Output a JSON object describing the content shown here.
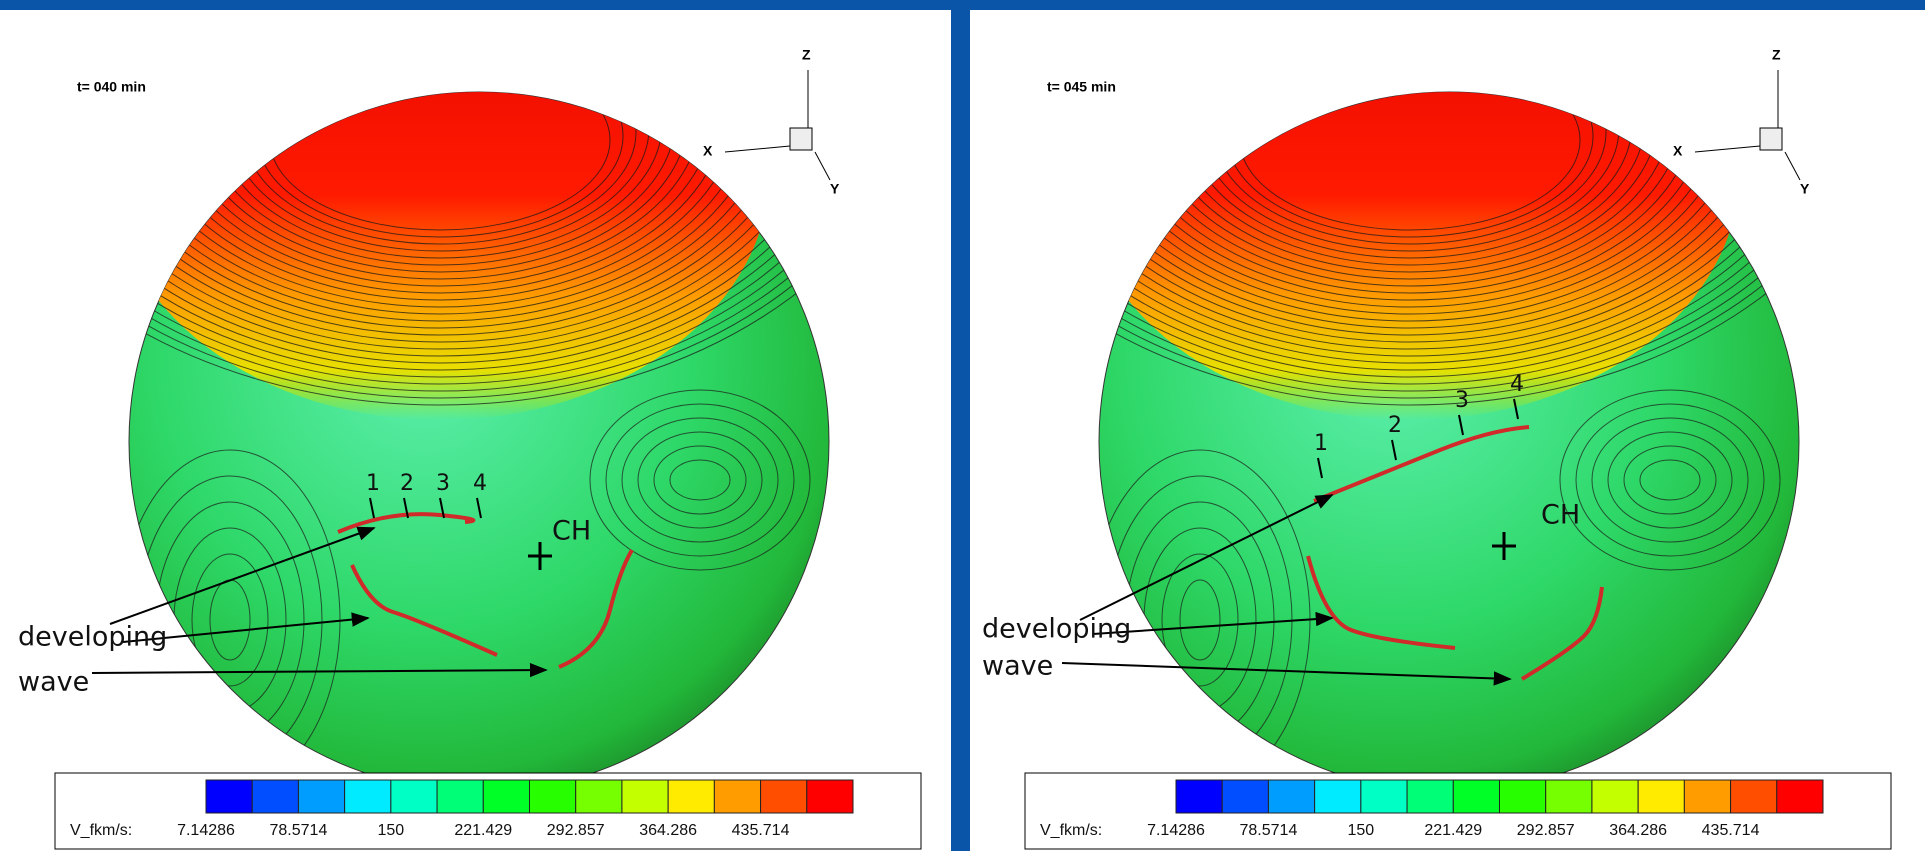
{
  "panels": [
    {
      "time_label": "t= 040 min",
      "axes": {
        "z": "Z",
        "x": "X",
        "y": "Y"
      },
      "annotations": {
        "markers": [
          "1",
          "2",
          "3",
          "4"
        ],
        "center": "CH",
        "developing": "developing",
        "wave": "wave"
      },
      "colorbar": {
        "variable": "V_fkm/s:",
        "ticks": [
          "7.14286",
          "78.5714",
          "150",
          "221.429",
          "292.857",
          "364.286",
          "435.714"
        ]
      }
    },
    {
      "time_label": "t= 045 min",
      "axes": {
        "z": "Z",
        "x": "X",
        "y": "Y"
      },
      "annotations": {
        "markers": [
          "1",
          "2",
          "3",
          "4"
        ],
        "center": "CH",
        "developing": "developing",
        "wave": "wave"
      },
      "colorbar": {
        "variable": "V_fkm/s:",
        "ticks": [
          "7.14286",
          "78.5714",
          "150",
          "221.429",
          "292.857",
          "364.286",
          "435.714"
        ]
      }
    }
  ]
}
